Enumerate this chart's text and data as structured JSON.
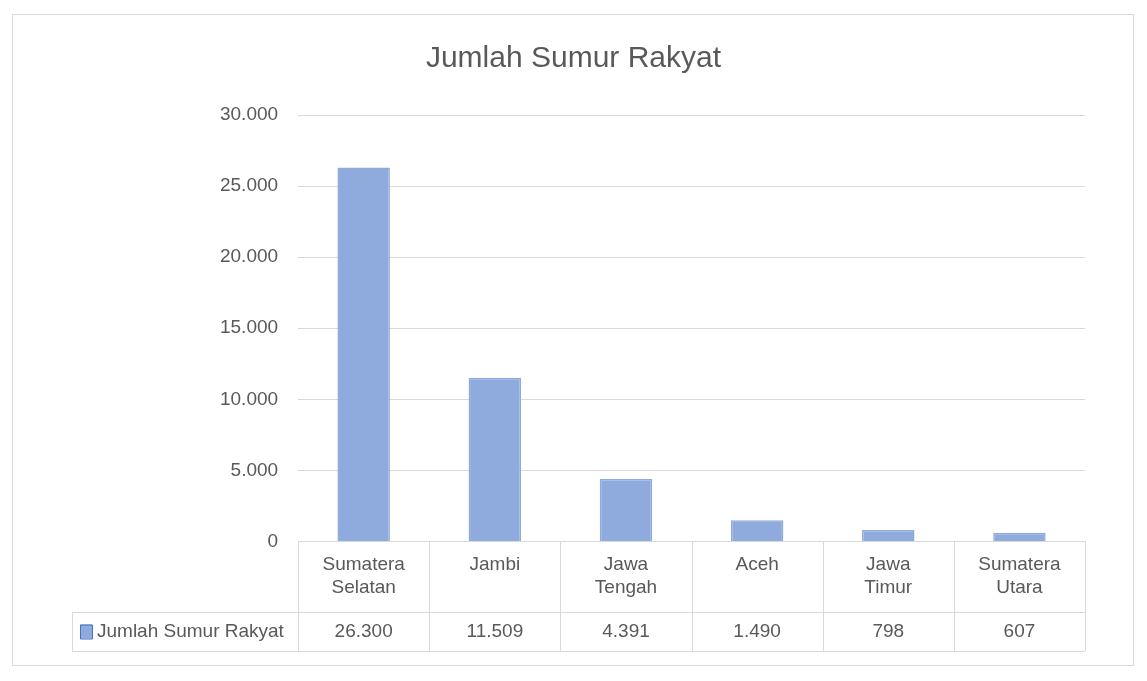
{
  "chart_data": {
    "type": "bar",
    "title": "Jumlah Sumur Rakyat",
    "categories": [
      "Sumatera Selatan",
      "Jambi",
      "Jawa Tengah",
      "Aceh",
      "Jawa Timur",
      "Sumatera Utara"
    ],
    "series": [
      {
        "name": "Jumlah Sumur Rakyat",
        "color": "#8faadc",
        "values": [
          26300,
          11509,
          4391,
          1490,
          798,
          607
        ],
        "value_labels": [
          "26.300",
          "11.509",
          "4.391",
          "1.490",
          "798",
          "607"
        ]
      }
    ],
    "ylim": [
      0,
      30000
    ],
    "yticks": [
      {
        "value": 0,
        "label": "0"
      },
      {
        "value": 5000,
        "label": "5.000"
      },
      {
        "value": 10000,
        "label": "10.000"
      },
      {
        "value": 15000,
        "label": "15.000"
      },
      {
        "value": 20000,
        "label": "20.000"
      },
      {
        "value": 25000,
        "label": "25.000"
      },
      {
        "value": 30000,
        "label": "30.000"
      }
    ],
    "grid": "y",
    "legend": "bottom"
  }
}
